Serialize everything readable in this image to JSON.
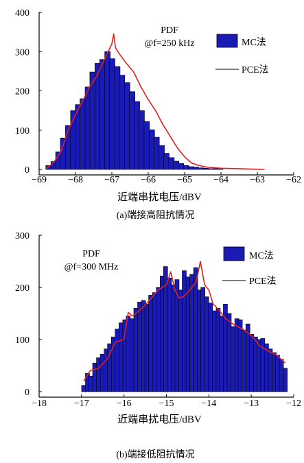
{
  "chart_data": [
    {
      "type": "bar",
      "panel_caption": "(a)端接高阻抗情况",
      "annotation": [
        "PDF",
        "@f=250 kHz"
      ],
      "xlabel": "近端串扰电压/dBV",
      "ylabel": "",
      "xlim": [
        -69,
        -62
      ],
      "ylim": [
        0,
        400
      ],
      "xticks": [
        "−69",
        "−68",
        "−67",
        "−66",
        "−65",
        "−64",
        "−63",
        "−62"
      ],
      "yticks": [
        "0",
        "100",
        "200",
        "300",
        "400"
      ],
      "legend": [
        "MC法",
        "PCE法"
      ],
      "legend_position": "top-right",
      "grid": false,
      "colors": {
        "bars": "#1a1ab4",
        "line": "#e02020"
      },
      "series": [
        {
          "name": "MC法",
          "kind": "bar",
          "x": [
            -68.74,
            -68.6,
            -68.47,
            -68.34,
            -68.2,
            -68.06,
            -67.93,
            -67.8,
            -67.66,
            -67.53,
            -67.39,
            -67.26,
            -67.12,
            -66.99,
            -66.85,
            -66.72,
            -66.58,
            -66.44,
            -66.31,
            -66.18,
            -66.04,
            -65.9,
            -65.77,
            -65.63,
            -65.5,
            -65.36,
            -65.23,
            -65.1,
            -64.96,
            -64.82,
            -64.69,
            -64.55,
            -64.42,
            -64.28,
            -64.15,
            -64.02
          ],
          "values": [
            10,
            20,
            45,
            80,
            112,
            150,
            165,
            180,
            210,
            248,
            270,
            280,
            300,
            282,
            262,
            240,
            221,
            198,
            173,
            150,
            122,
            101,
            82,
            61,
            41,
            30,
            21,
            15,
            10,
            7,
            6,
            4,
            3,
            2,
            2,
            1
          ]
        },
        {
          "name": "PCE法",
          "kind": "line",
          "x": [
            -68.8,
            -68.6,
            -68.4,
            -68.2,
            -68.0,
            -67.8,
            -67.6,
            -67.4,
            -67.3,
            -67.2,
            -67.1,
            -67.0,
            -66.95,
            -66.9,
            -66.8,
            -66.6,
            -66.4,
            -66.2,
            -66.0,
            -65.8,
            -65.6,
            -65.4,
            -65.2,
            -65.0,
            -64.8,
            -64.6,
            -64.4,
            -64.0,
            -63.6,
            -63.2,
            -62.8
          ],
          "values": [
            2,
            18,
            45,
            100,
            140,
            175,
            212,
            240,
            262,
            280,
            300,
            320,
            345,
            310,
            295,
            270,
            248,
            210,
            178,
            150,
            115,
            85,
            55,
            32,
            16,
            10,
            6,
            3,
            2,
            1,
            0
          ]
        }
      ]
    },
    {
      "type": "bar",
      "panel_caption": "(b)端接低阻抗情况",
      "annotation": [
        "PDF",
        "@f=300 MHz"
      ],
      "xlabel": "近端串扰电压/dBV",
      "ylabel": "",
      "xlim": [
        -18,
        -12
      ],
      "ylim": [
        0,
        300
      ],
      "xticks": [
        "−18",
        "−17",
        "−16",
        "−15",
        "−14",
        "−13",
        "−12"
      ],
      "yticks": [
        "0",
        "100",
        "200",
        "300"
      ],
      "legend": [
        "MC法",
        "PCE法"
      ],
      "legend_position": "top-right",
      "grid": false,
      "colors": {
        "bars": "#1a1ab4",
        "line": "#e02020"
      },
      "series": [
        {
          "name": "MC法",
          "kind": "bar",
          "x": [
            -16.95,
            -16.86,
            -16.78,
            -16.69,
            -16.6,
            -16.51,
            -16.42,
            -16.34,
            -16.25,
            -16.16,
            -16.07,
            -15.98,
            -15.9,
            -15.81,
            -15.72,
            -15.63,
            -15.54,
            -15.46,
            -15.37,
            -15.28,
            -15.19,
            -15.1,
            -15.02,
            -14.93,
            -14.84,
            -14.75,
            -14.66,
            -14.58,
            -14.49,
            -14.4,
            -14.31,
            -14.22,
            -14.14,
            -14.05,
            -13.96,
            -13.87,
            -13.78,
            -13.7,
            -13.61,
            -13.52,
            -13.43,
            -13.34,
            -13.26,
            -13.17,
            -13.08,
            -12.99,
            -12.9,
            -12.82,
            -12.73,
            -12.64,
            -12.55,
            -12.46,
            -12.38,
            -12.29,
            -12.2
          ],
          "values": [
            12,
            35,
            30,
            55,
            65,
            72,
            82,
            92,
            105,
            120,
            132,
            138,
            145,
            140,
            160,
            172,
            175,
            168,
            185,
            190,
            200,
            222,
            240,
            218,
            205,
            215,
            195,
            232,
            220,
            225,
            238,
            195,
            200,
            182,
            170,
            155,
            160,
            145,
            168,
            150,
            125,
            140,
            138,
            118,
            130,
            110,
            105,
            100,
            102,
            92,
            82,
            75,
            70,
            62,
            45
          ]
        },
        {
          "name": "PCE法",
          "kind": "line",
          "x": [
            -16.95,
            -16.8,
            -16.6,
            -16.4,
            -16.2,
            -16.0,
            -15.9,
            -15.8,
            -15.6,
            -15.4,
            -15.2,
            -15.0,
            -14.9,
            -14.8,
            -14.7,
            -14.6,
            -14.5,
            -14.4,
            -14.3,
            -14.2,
            -14.1,
            -14.0,
            -13.9,
            -13.8,
            -13.6,
            -13.4,
            -13.2,
            -13.0,
            -12.8,
            -12.6,
            -12.4,
            -12.2
          ],
          "values": [
            20,
            40,
            45,
            62,
            95,
            100,
            152,
            145,
            158,
            175,
            195,
            205,
            230,
            195,
            180,
            182,
            190,
            200,
            210,
            250,
            205,
            195,
            168,
            160,
            140,
            128,
            120,
            108,
            88,
            78,
            70,
            55
          ]
        }
      ]
    }
  ]
}
